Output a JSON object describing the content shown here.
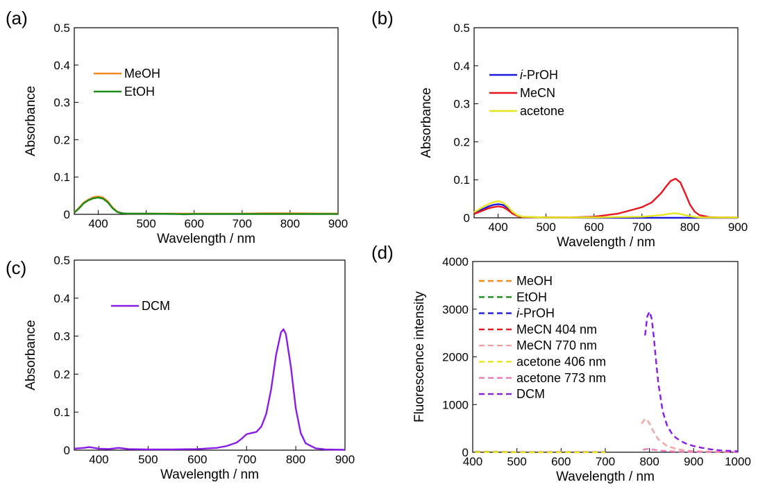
{
  "chart_data": [
    {
      "panel_label": "(a)",
      "type": "line",
      "xlabel": "Wavelength / nm",
      "ylabel": "Absorbance",
      "xlim": [
        350,
        900
      ],
      "ylim": [
        0,
        0.5
      ],
      "xticks": [
        400,
        500,
        600,
        700,
        800,
        900
      ],
      "yticks": [
        0,
        0.1,
        0.2,
        0.3,
        0.4,
        0.5
      ],
      "ytick_labels": [
        "0",
        "0.1",
        "0.2",
        "0.3",
        "0.4",
        "0.5"
      ],
      "legend_position": "upper-left",
      "series": [
        {
          "name": "MeOH",
          "color": "#f28a1d",
          "dashed": false,
          "x": [
            350,
            360,
            370,
            380,
            390,
            400,
            410,
            420,
            430,
            440,
            450,
            460,
            500,
            600,
            700,
            760,
            800,
            900
          ],
          "y": [
            0.005,
            0.018,
            0.032,
            0.04,
            0.046,
            0.048,
            0.045,
            0.035,
            0.018,
            0.007,
            0.003,
            0.002,
            0.002,
            0.002,
            0.002,
            0.003,
            0.003,
            0.002
          ]
        },
        {
          "name": "EtOH",
          "color": "#1a8a1a",
          "dashed": false,
          "x": [
            350,
            360,
            370,
            380,
            390,
            400,
            410,
            420,
            430,
            440,
            450,
            460,
            500,
            560,
            580,
            600,
            700,
            800,
            900
          ],
          "y": [
            0.004,
            0.016,
            0.03,
            0.038,
            0.043,
            0.045,
            0.042,
            0.032,
            0.016,
            0.006,
            0.003,
            0.002,
            0.002,
            0.001,
            0.0,
            0.001,
            0.001,
            0.001,
            0.001
          ]
        }
      ]
    },
    {
      "panel_label": "(b)",
      "type": "line",
      "xlabel": "Wavelength / nm",
      "ylabel": "Absorbance",
      "xlim": [
        350,
        900
      ],
      "ylim": [
        0,
        0.5
      ],
      "xticks": [
        400,
        500,
        600,
        700,
        800,
        900
      ],
      "yticks": [
        0,
        0.1,
        0.2,
        0.3,
        0.4,
        0.5
      ],
      "ytick_labels": [
        "0",
        "0.1",
        "0.2",
        "0.3",
        "0.4",
        "0.5"
      ],
      "legend_position": "upper-left",
      "series": [
        {
          "name_italic": "i",
          "name": "-PrOH",
          "color": "#1a1ae0",
          "dashed": false,
          "x": [
            350,
            360,
            370,
            380,
            390,
            400,
            410,
            420,
            430,
            440,
            450,
            460,
            500,
            600,
            700,
            750,
            800,
            900
          ],
          "y": [
            0.012,
            0.018,
            0.024,
            0.03,
            0.034,
            0.036,
            0.034,
            0.026,
            0.014,
            0.006,
            0.003,
            0.002,
            0.001,
            0.0,
            0.0,
            0.0,
            0.0,
            0.0
          ]
        },
        {
          "name": "MeCN",
          "color": "#e8141e",
          "dashed": false,
          "x": [
            350,
            360,
            370,
            380,
            390,
            400,
            410,
            420,
            430,
            440,
            450,
            500,
            550,
            600,
            650,
            680,
            700,
            720,
            740,
            750,
            760,
            770,
            780,
            790,
            800,
            810,
            820,
            840,
            860,
            900
          ],
          "y": [
            0.01,
            0.015,
            0.02,
            0.025,
            0.028,
            0.03,
            0.028,
            0.021,
            0.011,
            0.005,
            0.002,
            0.001,
            0.001,
            0.003,
            0.011,
            0.021,
            0.028,
            0.04,
            0.065,
            0.082,
            0.097,
            0.103,
            0.093,
            0.065,
            0.035,
            0.016,
            0.007,
            0.002,
            0.001,
            0.001
          ]
        },
        {
          "name": "acetone",
          "color": "#e6e61c",
          "dashed": false,
          "x": [
            350,
            360,
            370,
            380,
            390,
            400,
            410,
            420,
            430,
            440,
            450,
            500,
            600,
            700,
            740,
            760,
            770,
            780,
            800,
            820,
            900
          ],
          "y": [
            0.015,
            0.022,
            0.03,
            0.036,
            0.041,
            0.044,
            0.04,
            0.03,
            0.016,
            0.007,
            0.003,
            0.001,
            0.001,
            0.003,
            0.007,
            0.011,
            0.012,
            0.01,
            0.004,
            0.001,
            0.001
          ]
        }
      ]
    },
    {
      "panel_label": "(c)",
      "type": "line",
      "xlabel": "Wavelength / nm",
      "ylabel": "Absorbance",
      "xlim": [
        350,
        900
      ],
      "ylim": [
        0,
        0.5
      ],
      "xticks": [
        400,
        500,
        600,
        700,
        800,
        900
      ],
      "yticks": [
        0,
        0.1,
        0.2,
        0.3,
        0.4,
        0.5
      ],
      "ytick_labels": [
        "0",
        "0.1",
        "0.2",
        "0.3",
        "0.4",
        "0.5"
      ],
      "legend_position": "upper-left",
      "series": [
        {
          "name": "DCM",
          "color": "#8a1ae6",
          "dashed": false,
          "x": [
            350,
            370,
            380,
            390,
            400,
            420,
            440,
            460,
            500,
            550,
            600,
            640,
            660,
            680,
            690,
            700,
            710,
            720,
            730,
            740,
            750,
            760,
            770,
            775,
            780,
            790,
            800,
            810,
            820,
            840,
            860,
            900
          ],
          "y": [
            0.004,
            0.006,
            0.008,
            0.006,
            0.004,
            0.003,
            0.006,
            0.003,
            0.002,
            0.002,
            0.003,
            0.006,
            0.011,
            0.02,
            0.03,
            0.042,
            0.045,
            0.048,
            0.062,
            0.095,
            0.16,
            0.25,
            0.31,
            0.318,
            0.305,
            0.22,
            0.11,
            0.045,
            0.018,
            0.005,
            0.002,
            0.001
          ]
        }
      ]
    },
    {
      "panel_label": "(d)",
      "type": "line",
      "xlabel": "Wavelength / nm",
      "ylabel": "Fluorescence intensity",
      "xlim": [
        400,
        1000
      ],
      "ylim": [
        0,
        4000
      ],
      "xticks": [
        400,
        500,
        600,
        700,
        800,
        900,
        1000
      ],
      "yticks": [
        0,
        1000,
        2000,
        3000,
        4000
      ],
      "ytick_labels": [
        "0",
        "1000",
        "2000",
        "3000",
        "4000"
      ],
      "legend_position": "upper-left",
      "series": [
        {
          "name": "MeOH",
          "color": "#f28a1d",
          "dashed": true,
          "x": [
            405,
            500,
            600,
            700
          ],
          "y": [
            10,
            5,
            5,
            5
          ]
        },
        {
          "name": "EtOH",
          "color": "#1a8a1a",
          "dashed": true,
          "x": [
            405,
            500,
            600,
            700
          ],
          "y": [
            8,
            4,
            4,
            4
          ]
        },
        {
          "name_italic": "i",
          "name": "-PrOH",
          "color": "#1a1ae0",
          "dashed": true,
          "x": [
            405,
            500,
            600,
            700
          ],
          "y": [
            6,
            3,
            3,
            3
          ]
        },
        {
          "name": "MeCN 404 nm",
          "color": "#e8141e",
          "dashed": true,
          "x": [
            405,
            500,
            600,
            700
          ],
          "y": [
            5,
            2,
            2,
            2
          ]
        },
        {
          "name": "MeCN 770 nm",
          "color": "#f5a0a0",
          "dashed": true,
          "x": [
            782,
            790,
            795,
            800,
            810,
            820,
            840,
            860,
            880,
            900,
            950,
            1000
          ],
          "y": [
            600,
            700,
            680,
            600,
            420,
            270,
            130,
            70,
            40,
            25,
            10,
            5
          ]
        },
        {
          "name": "acetone 406 nm",
          "color": "#e6e61c",
          "dashed": true,
          "x": [
            405,
            500,
            600,
            700
          ],
          "y": [
            4,
            2,
            2,
            2
          ]
        },
        {
          "name": "acetone 773 nm",
          "color": "#f07ab8",
          "dashed": true,
          "x": [
            785,
            795,
            805,
            820,
            840,
            860,
            900,
            1000
          ],
          "y": [
            50,
            70,
            60,
            40,
            25,
            15,
            8,
            3
          ]
        },
        {
          "name": "DCM",
          "color": "#8a1ae6",
          "dashed": true,
          "x": [
            790,
            795,
            800,
            805,
            810,
            815,
            820,
            830,
            840,
            850,
            860,
            880,
            900,
            920,
            940,
            960,
            1000
          ],
          "y": [
            2450,
            2850,
            2950,
            2800,
            2400,
            1900,
            1450,
            850,
            560,
            400,
            300,
            190,
            130,
            90,
            60,
            40,
            20
          ]
        }
      ]
    }
  ]
}
